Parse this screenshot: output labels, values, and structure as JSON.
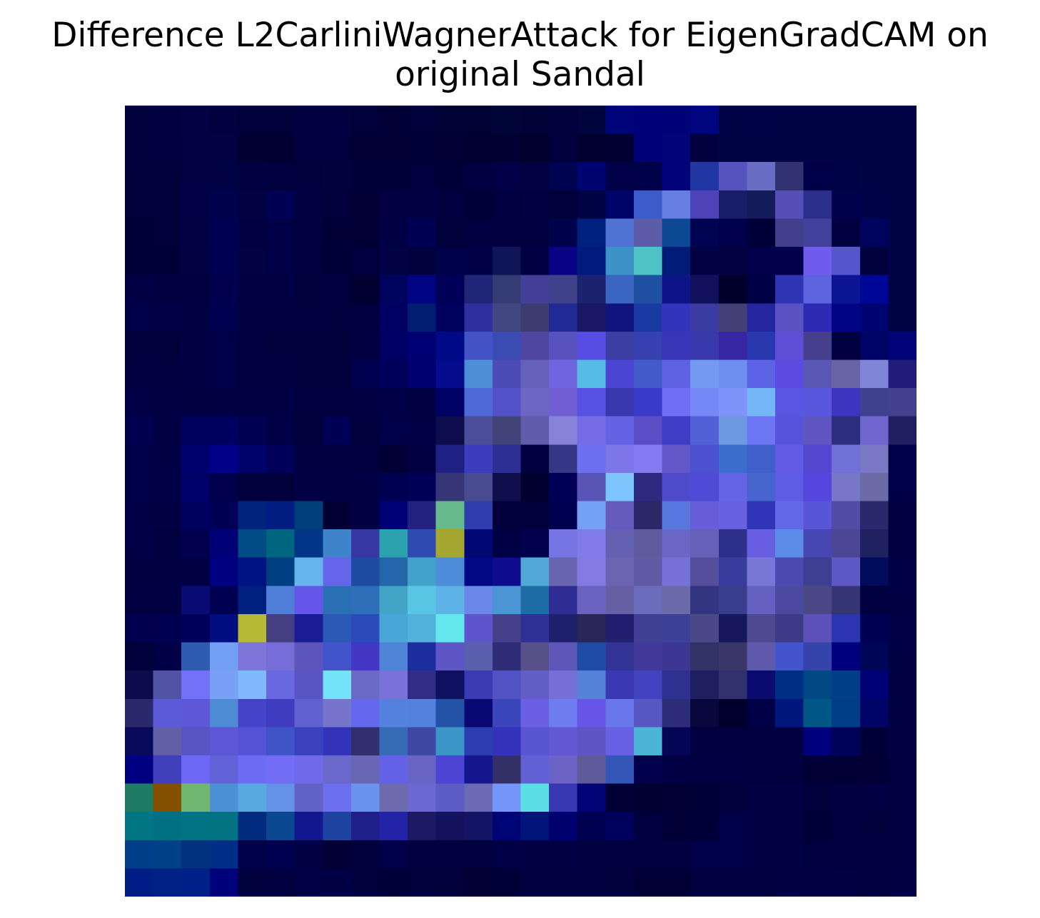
{
  "chart_data": {
    "type": "heatmap",
    "title_line1": "Difference L2CarliniWagnerAttack for EigenGradCAM on",
    "title_line2": "original Sandal",
    "xlabel": "",
    "ylabel": "",
    "axes_visible": false,
    "grid": false,
    "resolution": [
      28,
      28
    ],
    "cells": [
      [
        "#00013d",
        "#00013f",
        "#000244",
        "#00023f",
        "#00003a",
        "#00003b",
        "#000240",
        "#000240",
        "#00003a",
        "#000037",
        "#00003a",
        "#000135",
        "#000235",
        "#000539",
        "#000238",
        "#00003b",
        "#00043f",
        "#00047a",
        "#00027a",
        "#000378",
        "#00057f",
        "#000346",
        "#000347",
        "#000345",
        "#000346",
        "#000346",
        "#000346",
        "#000346"
      ],
      [
        "#00003c",
        "#00003e",
        "#000244",
        "#000243",
        "#000031",
        "#000032",
        "#00003f",
        "#00003f",
        "#000037",
        "#000036",
        "#000038",
        "#000037",
        "#000130",
        "#000133",
        "#00002f",
        "#00003c",
        "#000030",
        "#000031",
        "#000079",
        "#000474",
        "#00003d",
        "#000345",
        "#000346",
        "#000346",
        "#000346",
        "#000346",
        "#000346",
        "#000346"
      ],
      [
        "#00013b",
        "#00013c",
        "#000245",
        "#000246",
        "#000240",
        "#00003e",
        "#00003d",
        "#00023b",
        "#000039",
        "#000038",
        "#00003e",
        "#000038",
        "#000040",
        "#000146",
        "#000243",
        "#000450",
        "#000471",
        "#000148",
        "#000249",
        "#00037a",
        "#2136a2",
        "#5753be",
        "#6a6bc3",
        "#313272",
        "#000048",
        "#000248",
        "#000345",
        "#000346"
      ],
      [
        "#00003a",
        "#00013a",
        "#000146",
        "#00024b",
        "#000242",
        "#000054",
        "#000040",
        "#00003b",
        "#000037",
        "#000043",
        "#000044",
        "#000041",
        "#000038",
        "#000040",
        "#000042",
        "#00003b",
        "#000345",
        "#000368",
        "#3c5ccb",
        "#677ee2",
        "#4f43b8",
        "#1a1e68",
        "#141b5a",
        "#5550b8",
        "#2c2e8b",
        "#00024c",
        "#000347",
        "#000346"
      ],
      [
        "#000038",
        "#00003a",
        "#000246",
        "#000154",
        "#000042",
        "#000047",
        "#000040",
        "#000037",
        "#000035",
        "#000045",
        "#000055",
        "#00003b",
        "#000041",
        "#00003e",
        "#00003f",
        "#00024c",
        "#00207e",
        "#4f73d3",
        "#5d5ca8",
        "#0c4893",
        "#000351",
        "#00004d",
        "#000039",
        "#3f3f8b",
        "#42419b",
        "#00023f",
        "#00035d",
        "#000346"
      ],
      [
        "#000038",
        "#000039",
        "#000241",
        "#000154",
        "#000244",
        "#000046",
        "#000041",
        "#000038",
        "#00003f",
        "#000246",
        "#00013d",
        "#000249",
        "#000047",
        "#101458",
        "#000045",
        "#0a0286",
        "#001a7e",
        "#3b93c7",
        "#4ec3c6",
        "#001c77",
        "#000244",
        "#000340",
        "#00004b",
        "#00004b",
        "#705bef",
        "#5556cb",
        "#00023d",
        "#000346"
      ],
      [
        "#000044",
        "#000041",
        "#000040",
        "#00004d",
        "#000042",
        "#000045",
        "#00003c",
        "#00003f",
        "#000131",
        "#00025d",
        "#000482",
        "#000058",
        "#1f2577",
        "#353b73",
        "#423f98",
        "#3f418b",
        "#1c226d",
        "#3a64c2",
        "#2050a2",
        "#0e1488",
        "#11105d",
        "#00002b",
        "#000045",
        "#2e35b5",
        "#5b63de",
        "#0b1493",
        "#000695",
        "#000346"
      ],
      [
        "#000048",
        "#000046",
        "#000044",
        "#000051",
        "#000041",
        "#000040",
        "#00003e",
        "#00003d",
        "#00003e",
        "#000063",
        "#001c73",
        "#00005d",
        "#302fa0",
        "#424681",
        "#3c3c71",
        "#202a95",
        "#191866",
        "#10147f",
        "#193aa0",
        "#3334bd",
        "#3c3ba1",
        "#453f78",
        "#25269f",
        "#5952c3",
        "#2d29b4",
        "#000584",
        "#000472",
        "#000346"
      ],
      [
        "#00003d",
        "#00003c",
        "#000044",
        "#000049",
        "#000040",
        "#00003d",
        "#00003c",
        "#00003c",
        "#000041",
        "#000064",
        "#000073",
        "#000a87",
        "#4352c5",
        "#3a4cb2",
        "#4e46a1",
        "#5852bc",
        "#574de5",
        "#3d3ea3",
        "#3740af",
        "#3835b7",
        "#3a38ab",
        "#3926a5",
        "#2937ae",
        "#5d4fd5",
        "#463f8e",
        "#000041",
        "#000366",
        "#000478"
      ],
      [
        "#000040",
        "#00003e",
        "#000045",
        "#000048",
        "#00003e",
        "#000040",
        "#00003d",
        "#00003d",
        "#000050",
        "#00005a",
        "#000070",
        "#050b8d",
        "#4d8ed9",
        "#4d4cb7",
        "#6560b9",
        "#6f66df",
        "#56bbe5",
        "#4c45d3",
        "#425bc8",
        "#5d61e2",
        "#719af0",
        "#6e8ff0",
        "#5b62e3",
        "#5b4bdf",
        "#5a57b5",
        "#6964a4",
        "#8185d8",
        "#201c79"
      ],
      [
        "#000046",
        "#000044",
        "#000041",
        "#000043",
        "#000042",
        "#000044",
        "#00003e",
        "#00003f",
        "#000042",
        "#000047",
        "#000143",
        "#000065",
        "#4e6ad7",
        "#5251c8",
        "#6d67c4",
        "#735fd5",
        "#5752e3",
        "#3937ac",
        "#3939ca",
        "#6f6ef5",
        "#7489f5",
        "#7d93f9",
        "#74b7f8",
        "#5a56e3",
        "#5956de",
        "#3d34bf",
        "#40418e",
        "#41418e"
      ],
      [
        "#00004e",
        "#000043",
        "#00005f",
        "#000060",
        "#000050",
        "#000047",
        "#00003d",
        "#000054",
        "#00003c",
        "#000048",
        "#000047",
        "#0d0d4e",
        "#4c4d99",
        "#404378",
        "#5e5cab",
        "#8683d9",
        "#746ce7",
        "#6662e4",
        "#5b4ec4",
        "#3f3cc5",
        "#5361d9",
        "#6c99e2",
        "#6c75f3",
        "#5853dc",
        "#5f56c2",
        "#2e2e7f",
        "#6f67cf",
        "#201f62"
      ],
      [
        "#000048",
        "#000045",
        "#00006e",
        "#000088",
        "#00026b",
        "#00005a",
        "#000041",
        "#00003e",
        "#00003f",
        "#000037",
        "#000042",
        "#202084",
        "#3d3cbd",
        "#2e2f93",
        "#000040",
        "#363686",
        "#6c6ff0",
        "#7d76e8",
        "#847bf1",
        "#6356c8",
        "#4c51d0",
        "#3b6dcc",
        "#3f60c8",
        "#635ae6",
        "#5347d0",
        "#7170d6",
        "#7878c5",
        "#000049"
      ],
      [
        "#000048",
        "#000046",
        "#000068",
        "#00004c",
        "#00003c",
        "#00003d",
        "#000044",
        "#000042",
        "#000044",
        "#000052",
        "#000058",
        "#363676",
        "#484b8f",
        "#0f0f4e",
        "#00002f",
        "#000057",
        "#5955b6",
        "#7cc4fb",
        "#2c2b7f",
        "#4f4ac9",
        "#514ad7",
        "#6464e4",
        "#4565cc",
        "#5e5be4",
        "#5347dd",
        "#7776c8",
        "#6c6ba6",
        "#000049"
      ],
      [
        "#000047",
        "#000044",
        "#000060",
        "#000054",
        "#00247e",
        "#001d81",
        "#003e7a",
        "#000034",
        "#000045",
        "#000076",
        "#232181",
        "#66b98a",
        "#2e3cac",
        "#00003c",
        "#00003c",
        "#000051",
        "#75a1f5",
        "#645bbc",
        "#2d2867",
        "#5677de",
        "#655ed8",
        "#6760e1",
        "#3035b7",
        "#6269e6",
        "#5a55d6",
        "#4f4da6",
        "#29296d",
        "#000040"
      ],
      [
        "#000047",
        "#000040",
        "#00004e",
        "#000077",
        "#004b83",
        "#00657f",
        "#003487",
        "#3e83cb",
        "#3737a5",
        "#2ba2ad",
        "#2f4bb2",
        "#a3a72f",
        "#000875",
        "#000045",
        "#00004c",
        "#7775e4",
        "#817ae9",
        "#6460b2",
        "#5f5b9e",
        "#6a67c6",
        "#6362b8",
        "#2e2e8b",
        "#675ee2",
        "#5b8cea",
        "#4746b2",
        "#4c4795",
        "#202160",
        "#000041"
      ],
      [
        "#000040",
        "#000042",
        "#000045",
        "#000083",
        "#001382",
        "#003e82",
        "#66b3ee",
        "#6565ea",
        "#1e4aa0",
        "#2366a9",
        "#41a1c8",
        "#4d8dd7",
        "#000883",
        "#0e0b8c",
        "#50a8d7",
        "#6865b0",
        "#837ae4",
        "#6a64b1",
        "#5f5ca5",
        "#7772da",
        "#544e9c",
        "#3a3c9d",
        "#7876d6",
        "#4c49b0",
        "#3e3f93",
        "#5c59c6",
        "#000b5c",
        "#000046"
      ],
      [
        "#000042",
        "#000042",
        "#0b0b74",
        "#000052",
        "#00207f",
        "#4f7fd9",
        "#6356e8",
        "#2870b3",
        "#2d6fb8",
        "#42a5c8",
        "#5ac6e6",
        "#5db2e6",
        "#6b87ea",
        "#4c95d4",
        "#1f6ba5",
        "#2f2d93",
        "#6763be",
        "#665fa4",
        "#6a6bbd",
        "#6b6aa8",
        "#34357f",
        "#383d8c",
        "#6360c2",
        "#4c4aa0",
        "#4a4886",
        "#343572",
        "#000041",
        "#000045"
      ],
      [
        "#00004e",
        "#000050",
        "#00005b",
        "#000e82",
        "#b6b934",
        "#443f80",
        "#1b1d96",
        "#2c58b6",
        "#2b4bbb",
        "#4ba6d8",
        "#54b1da",
        "#65e7ee",
        "#5d55cc",
        "#44418a",
        "#302f93",
        "#1f216e",
        "#2a2658",
        "#201f70",
        "#3f3f93",
        "#3e3f96",
        "#4b4888",
        "#17175d",
        "#4d4a91",
        "#3d3b88",
        "#5b51b9",
        "#2c34b2",
        "#000055",
        "#000047"
      ],
      [
        "#00003b",
        "#000047",
        "#2f5bb0",
        "#73a0f4",
        "#7d75da",
        "#756ed9",
        "#5c56bc",
        "#4154cc",
        "#4337c6",
        "#5084d6",
        "#1c2e9e",
        "#5e55c6",
        "#5b5ead",
        "#2f2d78",
        "#575089",
        "#5d57b9",
        "#1f4ba5",
        "#333496",
        "#42389c",
        "#3c3792",
        "#303365",
        "#3a3768",
        "#5e59ab",
        "#4454cc",
        "#3444ab",
        "#00007e",
        "#000555",
        "#000045"
      ],
      [
        "#0b0b4e",
        "#5253a4",
        "#7371f8",
        "#77a0f6",
        "#7fb9fc",
        "#6a69e2",
        "#5a55c5",
        "#74e3f9",
        "#6a6ac6",
        "#7973d9",
        "#2f2e84",
        "#101060",
        "#3b3ab3",
        "#5352c4",
        "#615fc6",
        "#7470d6",
        "#5581d9",
        "#3b38b5",
        "#4243c0",
        "#2f3191",
        "#1e1f5e",
        "#31316e",
        "#0a0a6f",
        "#002e83",
        "#004984",
        "#003f87",
        "#000175",
        "#000045"
      ],
      [
        "#29296d",
        "#5d5ad9",
        "#5e58d8",
        "#4e8bd5",
        "#4544c8",
        "#3f3cc0",
        "#6161d1",
        "#7774cc",
        "#6667ef",
        "#5582de",
        "#5382de",
        "#2353a7",
        "#090772",
        "#3b45bc",
        "#6b60e4",
        "#6f7cef",
        "#6855e8",
        "#6a77ec",
        "#5756c2",
        "#2d2d7a",
        "#08073e",
        "#00002d",
        "#000046",
        "#00187d",
        "#005786",
        "#003d89",
        "#000467",
        "#000045"
      ],
      [
        "#0a0a5d",
        "#6160a7",
        "#5955c5",
        "#5d57d7",
        "#5552d6",
        "#3e54c7",
        "#3b40bd",
        "#3334ba",
        "#312f6e",
        "#356cb5",
        "#4048a5",
        "#3b95c6",
        "#2c3db2",
        "#3431ba",
        "#5a56d3",
        "#6059d3",
        "#5e55c7",
        "#6860e5",
        "#4bb3d6",
        "#060656",
        "#000041",
        "#000041",
        "#000041",
        "#000041",
        "#00007d",
        "#000258",
        "#000038",
        "#000045"
      ],
      [
        "#000083",
        "#403fbc",
        "#6e67f5",
        "#6262d8",
        "#6c6bf2",
        "#736cf4",
        "#7069e9",
        "#6b68cc",
        "#6767b4",
        "#6462e9",
        "#6965c4",
        "#4f45d4",
        "#15178f",
        "#333067",
        "#6160d4",
        "#6b64c6",
        "#5e5b9b",
        "#3457b7",
        "#00004c",
        "#000044",
        "#000042",
        "#000042",
        "#000041",
        "#00003e",
        "#000036",
        "#000037",
        "#000037",
        "#000040"
      ],
      [
        "#1d7c61",
        "#835000",
        "#72b771",
        "#4c91d5",
        "#57a8df",
        "#6591e6",
        "#6262c6",
        "#6b6eed",
        "#6993ec",
        "#6d6aae",
        "#6b67d3",
        "#5d5bc4",
        "#6c6ab3",
        "#7495f9",
        "#5bdfe7",
        "#3737b2",
        "#000475",
        "#000037",
        "#000033",
        "#000034",
        "#000039",
        "#00003d",
        "#000043",
        "#000045",
        "#00003d",
        "#000041",
        "#000042",
        "#00003f"
      ],
      [
        "#007685",
        "#007183",
        "#007385",
        "#007282",
        "#002b7f",
        "#0a4891",
        "#13178f",
        "#1e43a0",
        "#201f89",
        "#2323a7",
        "#1b1a63",
        "#12125d",
        "#141465",
        "#000576",
        "#001479",
        "#00006e",
        "#000050",
        "#00005d",
        "#00003e",
        "#000036",
        "#000039",
        "#000048",
        "#000044",
        "#000042",
        "#000039",
        "#000040",
        "#00003c",
        "#000040"
      ],
      [
        "#003e89",
        "#004188",
        "#00317f",
        "#002d85",
        "#000049",
        "#000050",
        "#000043",
        "#000034",
        "#00003d",
        "#000049",
        "#000040",
        "#00003e",
        "#00003f",
        "#000046",
        "#000045",
        "#000044",
        "#000041",
        "#000041",
        "#000041",
        "#000041",
        "#000049",
        "#000048",
        "#000045",
        "#000044",
        "#000040",
        "#00003f",
        "#000041",
        "#000041"
      ],
      [
        "#001d85",
        "#002287",
        "#002089",
        "#00027a",
        "#00003c",
        "#000040",
        "#000047",
        "#000045",
        "#00003d",
        "#000039",
        "#00003d",
        "#00003b",
        "#000035",
        "#000039",
        "#00003e",
        "#00003f",
        "#000041",
        "#00003d",
        "#000036",
        "#000037",
        "#00003f",
        "#00003f",
        "#000041",
        "#000045",
        "#000043",
        "#000043",
        "#000040",
        "#000045"
      ]
    ]
  }
}
